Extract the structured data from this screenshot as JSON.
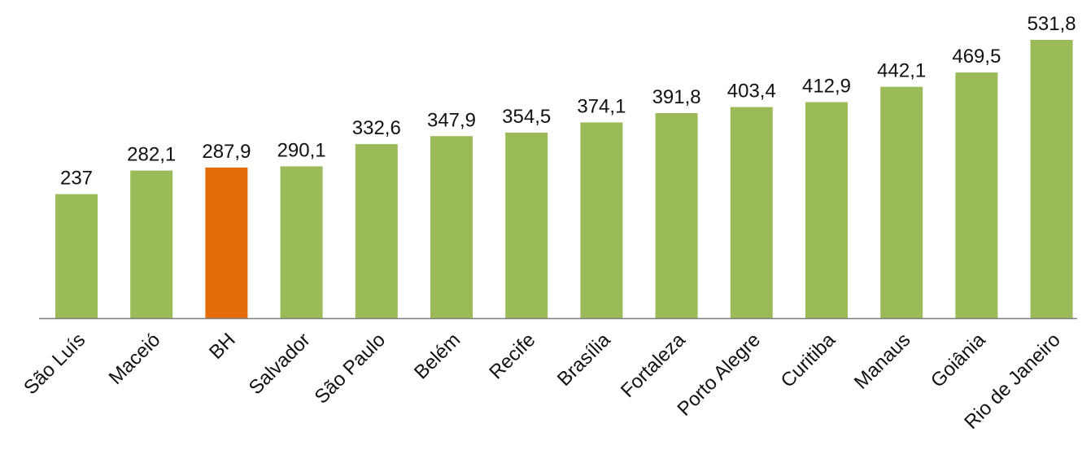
{
  "chart_data": {
    "type": "bar",
    "categories": [
      "São Luís",
      "Maceió",
      "BH",
      "Salvador",
      "São Paulo",
      "Belém",
      "Recife",
      "Brasília",
      "Fortaleza",
      "Porto Alegre",
      "Curitiba",
      "Manaus",
      "Goiânia",
      "Rio de Janeiro"
    ],
    "values": [
      237,
      282.1,
      287.9,
      290.1,
      332.6,
      347.9,
      354.5,
      374.1,
      391.8,
      403.4,
      412.9,
      442.1,
      469.5,
      531.8
    ],
    "value_labels": [
      "237",
      "282,1",
      "287,9",
      "290,1",
      "332,6",
      "347,9",
      "354,5",
      "374,1",
      "391,8",
      "403,4",
      "412,9",
      "442,1",
      "469,5",
      "531,8"
    ],
    "title": "",
    "xlabel": "",
    "ylabel": "",
    "ylim": [
      0,
      531.8
    ],
    "grid": false,
    "legend": "none",
    "highlight_index": 2,
    "colors": {
      "default": "#9bbb59",
      "highlight": "#e46c0a",
      "axis": "#7f7f7f"
    }
  }
}
